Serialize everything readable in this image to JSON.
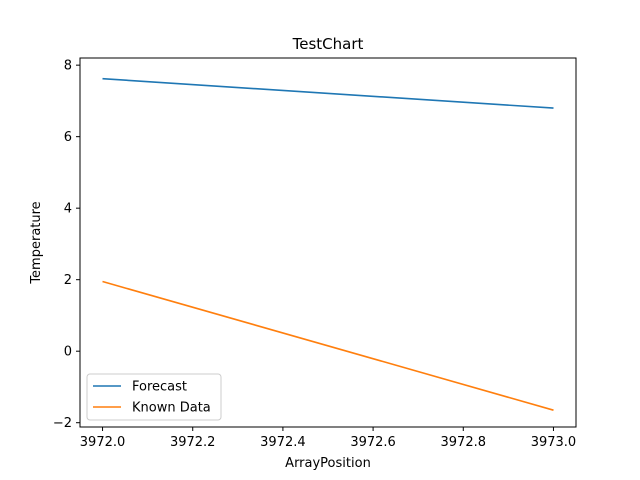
{
  "chart_data": {
    "type": "line",
    "title": "TestChart",
    "xlabel": "ArrayPosition",
    "ylabel": "Temperature",
    "xlim": [
      3971.95,
      3973.05
    ],
    "ylim": [
      -2.12,
      8.2
    ],
    "xticks": [
      3972.0,
      3972.2,
      3972.4,
      3972.6,
      3972.8,
      3973.0
    ],
    "xtick_labels": [
      "3972.0",
      "3972.2",
      "3972.4",
      "3972.6",
      "3972.8",
      "3973.0"
    ],
    "yticks": [
      -2,
      0,
      2,
      4,
      6,
      8
    ],
    "ytick_labels": [
      "−2",
      "0",
      "2",
      "4",
      "6",
      "8"
    ],
    "grid": false,
    "legend_position": "lower-left",
    "series": [
      {
        "name": "Forecast",
        "color": "#1f77b4",
        "x": [
          3972.0,
          3973.0
        ],
        "y": [
          7.62,
          6.8
        ]
      },
      {
        "name": "Known Data",
        "color": "#ff7f0e",
        "x": [
          3972.0,
          3973.0
        ],
        "y": [
          1.95,
          -1.65
        ]
      }
    ]
  }
}
